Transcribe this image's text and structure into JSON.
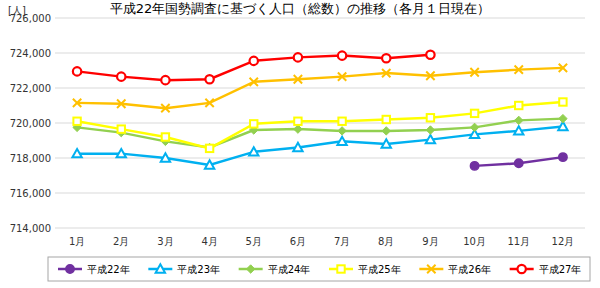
{
  "chart_data": {
    "type": "line",
    "title": "平成22年国勢調査に基づく人口（総数）の推移（各月１日現在）",
    "y_label": "[人]",
    "categories": [
      "1月",
      "2月",
      "3月",
      "4月",
      "5月",
      "6月",
      "7月",
      "8月",
      "9月",
      "10月",
      "11月",
      "12月"
    ],
    "ylim": [
      714000,
      726000
    ],
    "yticks": [
      {
        "value": 714000,
        "label": "714,000"
      },
      {
        "value": 716000,
        "label": "716,000"
      },
      {
        "value": 718000,
        "label": "718,000"
      },
      {
        "value": 720000,
        "label": "720,000"
      },
      {
        "value": 722000,
        "label": "722,000"
      },
      {
        "value": 724000,
        "label": "724,000"
      },
      {
        "value": 726000,
        "label": "726,000"
      }
    ],
    "grid": true,
    "legend": "bottom",
    "series": [
      {
        "name": "平成22年",
        "color": "#7030a0",
        "marker": "circle",
        "line_style": "solid",
        "values": [
          null,
          null,
          null,
          null,
          null,
          null,
          null,
          null,
          null,
          717550,
          717700,
          718050
        ]
      },
      {
        "name": "平成23年",
        "color": "#00b0f0",
        "marker": "open-triangle",
        "line_style": "solid",
        "values": [
          718250,
          718250,
          718000,
          717600,
          718350,
          718600,
          718950,
          718800,
          719050,
          719350,
          719550,
          719800
        ]
      },
      {
        "name": "平成24年",
        "color": "#92d050",
        "marker": "diamond",
        "line_style": "solid",
        "values": [
          719750,
          719450,
          718950,
          718600,
          719600,
          719650,
          719550,
          719550,
          719600,
          719750,
          720150,
          720250
        ]
      },
      {
        "name": "平成25年",
        "color": "#ffff00",
        "marker": "open-square",
        "line_style": "solid",
        "values": [
          720100,
          719650,
          719200,
          718550,
          719950,
          720100,
          720100,
          720200,
          720300,
          720550,
          721000,
          721200
        ]
      },
      {
        "name": "平成26年",
        "color": "#ffc000",
        "marker": "x",
        "line_style": "solid",
        "values": [
          721150,
          721100,
          720850,
          721150,
          722350,
          722500,
          722650,
          722850,
          722700,
          722900,
          723050,
          723150
        ]
      },
      {
        "name": "平成27年",
        "color": "#ff0000",
        "marker": "open-circle",
        "line_style": "solid",
        "values": [
          722950,
          722650,
          722450,
          722500,
          723550,
          723750,
          723850,
          723700,
          723900,
          null,
          null,
          null
        ]
      }
    ]
  }
}
